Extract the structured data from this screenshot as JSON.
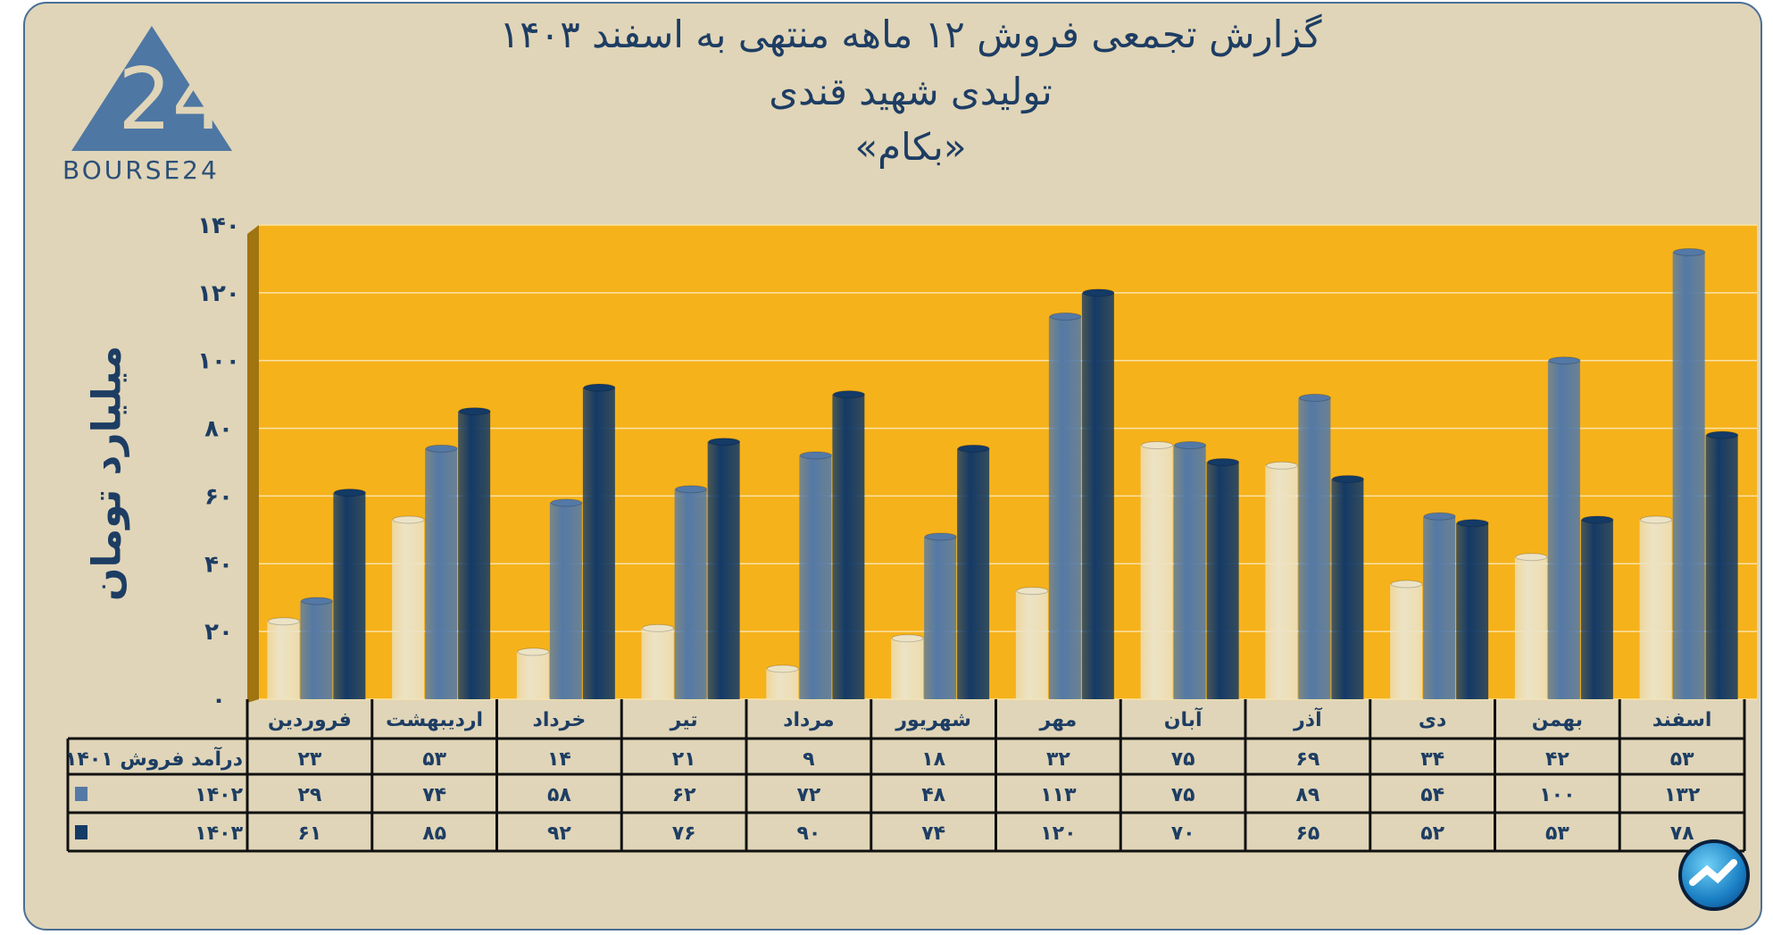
{
  "header": {
    "title_line1": "گزارش تجمعی فروش ۱۲ ماهه منتهی به اسفند ۱۴۰۳",
    "title_line2": "تولیدی شهید قندی",
    "title_line3": "«بکام»"
  },
  "logo": {
    "text": "BOURSE24"
  },
  "colors": {
    "background": "#e0d5b8",
    "plot": "#f6b21b",
    "s1401": "#ece3c6",
    "s1402": "#5479a6",
    "s1403": "#143a66",
    "text": "#1d3d63"
  },
  "chart_data": {
    "type": "bar",
    "ylabel": "میلیارد تومان",
    "ylim": [
      0,
      140
    ],
    "yticks": [
      0,
      20,
      40,
      60,
      80,
      100,
      120,
      140
    ],
    "ytick_labels": [
      "۰",
      "۲۰",
      "۴۰",
      "۶۰",
      "۸۰",
      "۱۰۰",
      "۱۲۰",
      "۱۴۰"
    ],
    "grid": true,
    "categories": [
      "فروردین",
      "اردیبهشت",
      "خرداد",
      "تیر",
      "مرداد",
      "شهریور",
      "مهر",
      "آبان",
      "آذر",
      "دی",
      "بهمن",
      "اسفند"
    ],
    "series": [
      {
        "name": "درآمد فروش ۱۴۰۱",
        "color": "#ece3c6",
        "values": [
          23,
          53,
          14,
          21,
          9,
          18,
          32,
          75,
          69,
          34,
          42,
          53
        ]
      },
      {
        "name": "۱۴۰۲",
        "color": "#5479a6",
        "values": [
          29,
          74,
          58,
          62,
          72,
          48,
          113,
          75,
          89,
          54,
          100,
          132
        ]
      },
      {
        "name": "۱۴۰۳",
        "color": "#143a66",
        "values": [
          61,
          85,
          92,
          76,
          90,
          74,
          120,
          70,
          65,
          52,
          53,
          78
        ]
      }
    ]
  }
}
